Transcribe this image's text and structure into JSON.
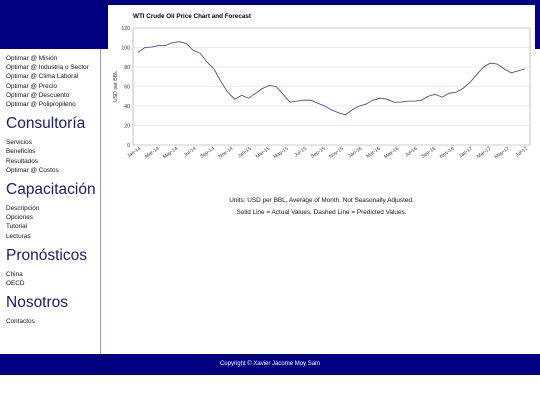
{
  "sidebar": {
    "optimize_links": [
      "Optimar @ Misión",
      "Optimar @ Industria o Sector",
      "Optimar @ Clima Laboral",
      "Optimar @ Precio",
      "Optimar @ Descuento",
      "Optimar @ Polipropileno"
    ],
    "sections": [
      {
        "title": "Consultoría",
        "links": [
          "Servicios",
          "Beneficios",
          "Resultados",
          "Optimar @ Costos"
        ]
      },
      {
        "title": "Capacitación",
        "links": [
          "Descripción",
          "Opciones",
          "Tutorial",
          "Lecturas"
        ]
      },
      {
        "title": "Pronósticos",
        "links": [
          "China",
          "OECD"
        ]
      },
      {
        "title": "Nosotros",
        "links": [
          "Contactos"
        ]
      }
    ]
  },
  "main": {
    "note_units": "Units: USD per BBL, Average of Month.  Not Seasonally Adjusted.",
    "note_lines": "Solid Line = Actual Values.  Dashed Line = Predicted Values."
  },
  "footer": {
    "copyright": "Copyright © Xavier Jácome Moy Sam"
  },
  "colors": {
    "band": "#000080",
    "line": "#3a3a8a",
    "grid": "#d8d8d8"
  },
  "chart_data": {
    "type": "line",
    "title": "WTI Crude Oil Price Chart and Forecast",
    "xlabel": "",
    "ylabel": "USD per BBL",
    "ylim": [
      0,
      120
    ],
    "yticks": [
      0,
      20,
      40,
      60,
      80,
      100,
      120
    ],
    "grid": true,
    "xtick_labels": [
      "Jan-14",
      "Mar-14",
      "May-14",
      "Jul-14",
      "Sep-14",
      "Nov-14",
      "Jan-15",
      "Mar-15",
      "May-15",
      "Jul-15",
      "Sep-15",
      "Nov-15",
      "Jan-16",
      "Mar-16",
      "May-16",
      "Jul-16",
      "Sep-16",
      "Nov-16",
      "Jan-17",
      "Mar-17",
      "May-17",
      "Jul-17"
    ],
    "series": [
      {
        "values": [
          95,
          100,
          100.5,
          102,
          102,
          105,
          106,
          104,
          97,
          94,
          85,
          78,
          65,
          54,
          47,
          51,
          48,
          53,
          58,
          61,
          60,
          52,
          44,
          45,
          46,
          46,
          43,
          40,
          36,
          33,
          31,
          36,
          40,
          42,
          46,
          48,
          47,
          44,
          44,
          45,
          45,
          46,
          50,
          52,
          49,
          53,
          54,
          58,
          64,
          72,
          80,
          84,
          83,
          78,
          74,
          76,
          78
        ]
      }
    ]
  }
}
